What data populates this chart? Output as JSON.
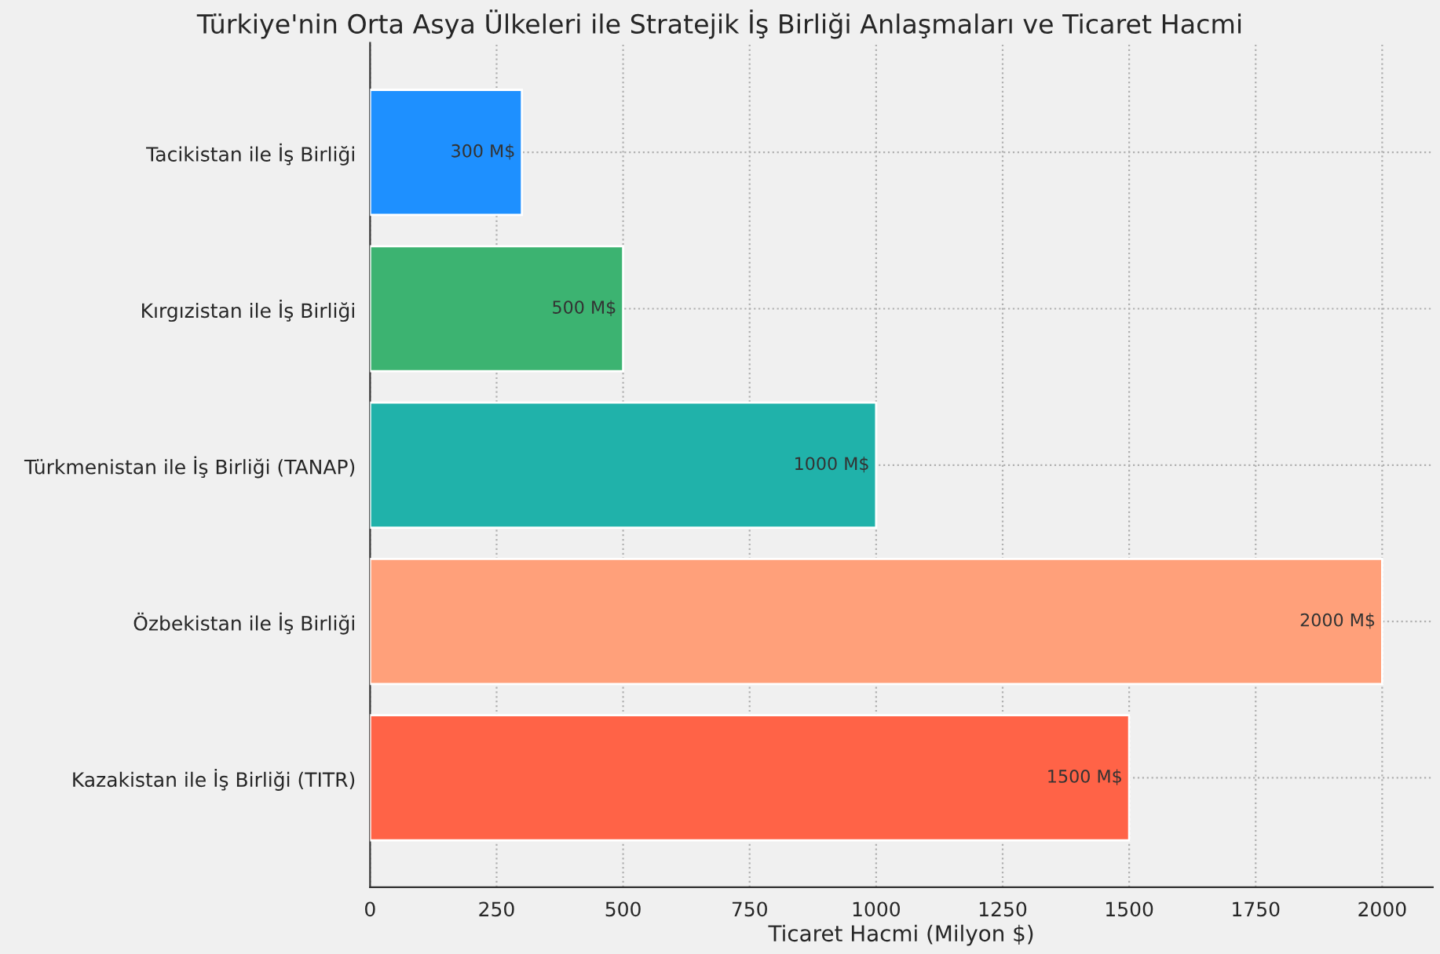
{
  "chart_data": {
    "type": "bar",
    "orientation": "horizontal",
    "title": "Türkiye'nin Orta Asya Ülkeleri ile Stratejik İş Birliği Anlaşmaları ve Ticaret Hacmi",
    "xlabel": "Ticaret Hacmi (Milyon $)",
    "categories": [
      "Tacikistan ile İş Birliği",
      "Kırgızistan ile İş Birliği",
      "Türkmenistan ile İş Birliği (TANAP)",
      "Özbekistan ile İş Birliği",
      "Kazakistan ile İş Birliği (TITR)"
    ],
    "values": [
      300,
      500,
      1000,
      2000,
      1500
    ],
    "colors": [
      "#1e90ff",
      "#3cb371",
      "#20b2aa",
      "#ffa07a",
      "#ff6347"
    ],
    "value_labels": [
      "300 M$",
      "500 M$",
      "1000 M$",
      "2000 M$",
      "1500 M$"
    ],
    "xlim": [
      0,
      2100
    ],
    "xticks": [
      0,
      250,
      500,
      750,
      1000,
      1250,
      1500,
      1750,
      2000
    ],
    "grid": true
  }
}
